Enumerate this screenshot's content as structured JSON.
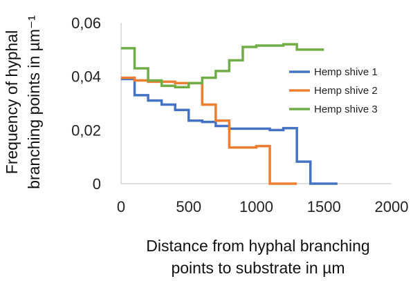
{
  "chart_data": {
    "type": "line",
    "step": true,
    "xlabel_lines": [
      "Distance from hyphal branching",
      "points to substrate in µm"
    ],
    "ylabel_lines": [
      "Frequency of hyphal",
      "branching points in µm⁻¹"
    ],
    "xlim": [
      0,
      2000
    ],
    "ylim": [
      0,
      0.06
    ],
    "xticks": [
      0,
      500,
      1000,
      1500,
      2000
    ],
    "xtick_labels": [
      "0",
      "500",
      "1000",
      "1500",
      "2000"
    ],
    "yticks": [
      0,
      0.02,
      0.04,
      0.06
    ],
    "ytick_labels": [
      "0",
      "0,02",
      "0,04",
      "0,06"
    ],
    "grid": false,
    "legend_position": "right",
    "series": [
      {
        "name": "Hemp shive 1",
        "color": "#4472C4",
        "x": [
          0,
          100,
          200,
          300,
          400,
          500,
          600,
          700,
          800,
          900,
          1000,
          1100,
          1200,
          1300,
          1400,
          1500
        ],
        "y": [
          0.039,
          0.033,
          0.031,
          0.0295,
          0.0275,
          0.0235,
          0.023,
          0.0215,
          0.0205,
          0.0205,
          0.0205,
          0.02,
          0.0207,
          0.0082,
          0,
          0
        ]
      },
      {
        "name": "Hemp shive 2",
        "color": "#ED7D31",
        "x": [
          0,
          100,
          200,
          300,
          400,
          500,
          600,
          700,
          800,
          900,
          1000,
          1100,
          1200
        ],
        "y": [
          0.0395,
          0.0385,
          0.038,
          0.038,
          0.0375,
          0.0375,
          0.0295,
          0.0235,
          0.0135,
          0.0135,
          0.014,
          0,
          0
        ]
      },
      {
        "name": "Hemp shive 3",
        "color": "#70AD47",
        "x": [
          0,
          100,
          200,
          300,
          400,
          500,
          600,
          700,
          800,
          900,
          1000,
          1100,
          1200,
          1300,
          1400
        ],
        "y": [
          0.0505,
          0.043,
          0.0385,
          0.0365,
          0.036,
          0.0375,
          0.0395,
          0.042,
          0.046,
          0.051,
          0.0515,
          0.0515,
          0.052,
          0.05,
          0.05
        ]
      }
    ]
  }
}
